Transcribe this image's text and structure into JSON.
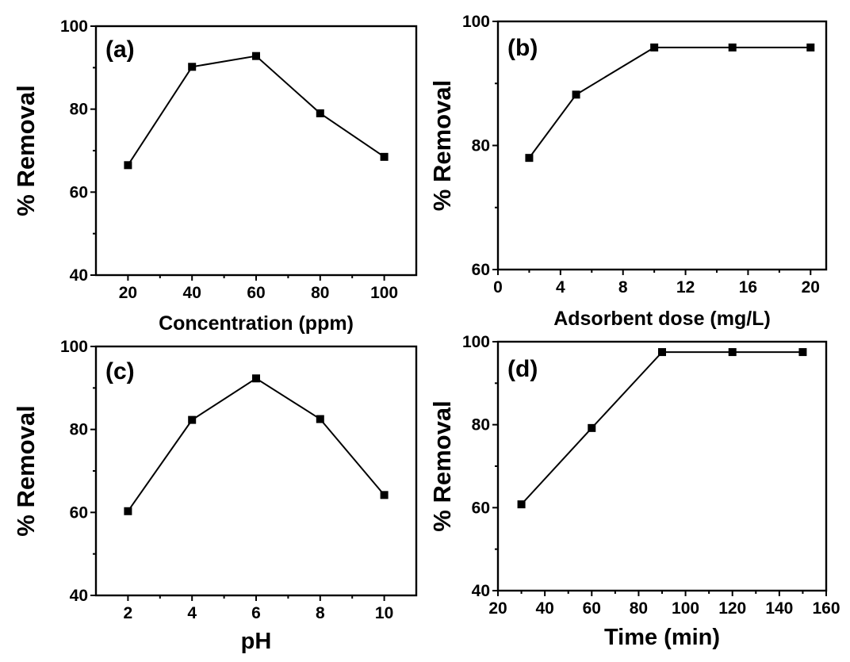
{
  "chart_data": [
    {
      "type": "line",
      "panel_label": "(a)",
      "xlabel": "Concentration (ppm)",
      "ylabel": "% Removal",
      "xlim": [
        10,
        110
      ],
      "ylim": [
        40,
        100
      ],
      "xticks": [
        20,
        40,
        60,
        80,
        100
      ],
      "yticks": [
        40,
        60,
        80,
        100
      ],
      "grid": false,
      "series": [
        {
          "x": [
            20,
            40,
            60,
            80,
            100
          ],
          "y": [
            66.5,
            90.2,
            92.8,
            79,
            68.5
          ]
        }
      ],
      "marker_color": "#000000"
    },
    {
      "type": "line",
      "panel_label": "(b)",
      "xlabel": "Adsorbent dose (mg/L)",
      "ylabel": "% Removal",
      "xlim": [
        0,
        21
      ],
      "ylim": [
        60,
        100
      ],
      "xticks": [
        0,
        4,
        8,
        12,
        16,
        20
      ],
      "yticks": [
        60,
        80,
        100
      ],
      "grid": false,
      "series": [
        {
          "x": [
            2,
            5,
            10,
            15,
            20
          ],
          "y": [
            78,
            88.2,
            95.8,
            95.8,
            95.8
          ]
        }
      ],
      "marker_color": "#000000"
    },
    {
      "type": "line",
      "panel_label": "(c)",
      "xlabel": "pH",
      "ylabel": "% Removal",
      "xlim": [
        1,
        11
      ],
      "ylim": [
        40,
        100
      ],
      "xticks": [
        2,
        4,
        6,
        8,
        10
      ],
      "yticks": [
        40,
        60,
        80,
        100
      ],
      "grid": false,
      "series": [
        {
          "x": [
            2,
            4,
            6,
            8,
            10
          ],
          "y": [
            60.3,
            82.3,
            92.3,
            82.5,
            64.2
          ]
        }
      ],
      "marker_color": "#000000"
    },
    {
      "type": "line",
      "panel_label": "(d)",
      "xlabel": "Time (min)",
      "ylabel": "% Removal",
      "xlim": [
        20,
        160
      ],
      "ylim": [
        40,
        100
      ],
      "xticks": [
        20,
        40,
        60,
        80,
        100,
        120,
        140,
        160
      ],
      "yticks": [
        40,
        60,
        80,
        100
      ],
      "grid": false,
      "series": [
        {
          "x": [
            30,
            60,
            90,
            120,
            150
          ],
          "y": [
            60.8,
            79.2,
            97.5,
            97.5,
            97.5
          ]
        }
      ],
      "marker_color": "#000000"
    }
  ]
}
